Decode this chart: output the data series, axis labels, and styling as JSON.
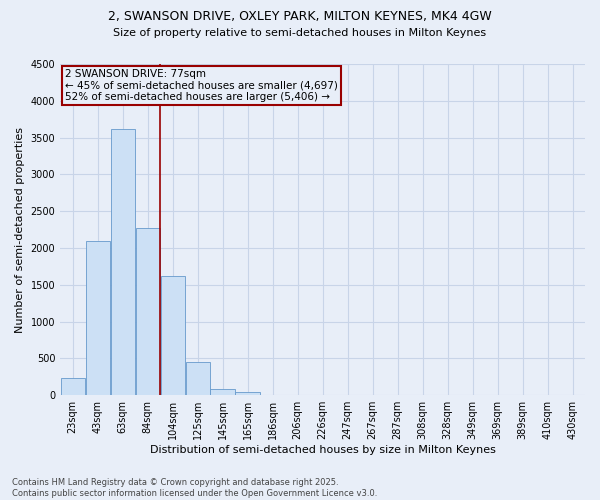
{
  "title_line1": "2, SWANSON DRIVE, OXLEY PARK, MILTON KEYNES, MK4 4GW",
  "title_line2": "Size of property relative to semi-detached houses in Milton Keynes",
  "xlabel": "Distribution of semi-detached houses by size in Milton Keynes",
  "ylabel": "Number of semi-detached properties",
  "footnote": "Contains HM Land Registry data © Crown copyright and database right 2025.\nContains public sector information licensed under the Open Government Licence v3.0.",
  "annotation_line1": "2 SWANSON DRIVE: 77sqm",
  "annotation_line2": "← 45% of semi-detached houses are smaller (4,697)",
  "annotation_line3": "52% of semi-detached houses are larger (5,406) →",
  "bar_color": "#cce0f5",
  "bar_edge_color": "#6699cc",
  "vline_color": "#990000",
  "background_color": "#e8eef8",
  "grid_color": "#c8d4e8",
  "categories": [
    "23sqm",
    "43sqm",
    "63sqm",
    "84sqm",
    "104sqm",
    "125sqm",
    "145sqm",
    "165sqm",
    "186sqm",
    "206sqm",
    "226sqm",
    "247sqm",
    "267sqm",
    "287sqm",
    "308sqm",
    "328sqm",
    "349sqm",
    "369sqm",
    "389sqm",
    "410sqm",
    "430sqm"
  ],
  "values": [
    230,
    2100,
    3620,
    2270,
    1620,
    450,
    90,
    50,
    0,
    0,
    0,
    0,
    0,
    0,
    0,
    0,
    0,
    0,
    0,
    0,
    0
  ],
  "ylim": [
    0,
    4500
  ],
  "yticks": [
    0,
    500,
    1000,
    1500,
    2000,
    2500,
    3000,
    3500,
    4000,
    4500
  ],
  "vline_x": 3.5,
  "annot_fontsize": 7.5,
  "title1_fontsize": 9,
  "title2_fontsize": 8,
  "tick_fontsize": 7,
  "ylabel_fontsize": 8,
  "xlabel_fontsize": 8,
  "footnote_fontsize": 6
}
